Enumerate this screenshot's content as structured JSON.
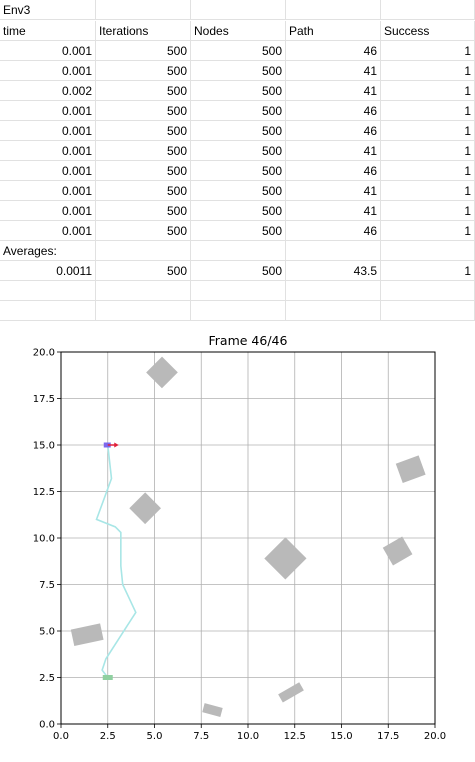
{
  "sheet": {
    "title": "Env3",
    "headers": [
      "time",
      "Iterations",
      "Nodes",
      "Path",
      "Success"
    ],
    "rows": [
      [
        "0.001",
        "500",
        "500",
        "46",
        "1"
      ],
      [
        "0.001",
        "500",
        "500",
        "41",
        "1"
      ],
      [
        "0.002",
        "500",
        "500",
        "41",
        "1"
      ],
      [
        "0.001",
        "500",
        "500",
        "46",
        "1"
      ],
      [
        "0.001",
        "500",
        "500",
        "46",
        "1"
      ],
      [
        "0.001",
        "500",
        "500",
        "41",
        "1"
      ],
      [
        "0.001",
        "500",
        "500",
        "46",
        "1"
      ],
      [
        "0.001",
        "500",
        "500",
        "41",
        "1"
      ],
      [
        "0.001",
        "500",
        "500",
        "41",
        "1"
      ],
      [
        "0.001",
        "500",
        "500",
        "46",
        "1"
      ]
    ],
    "averages_label": "Averages:",
    "averages": [
      "0.0011",
      "500",
      "500",
      "43.5",
      "1"
    ]
  },
  "chart_data": {
    "type": "scatter",
    "title": "Frame 46/46",
    "xlabel": "",
    "ylabel": "",
    "xlim": [
      0,
      20
    ],
    "ylim": [
      0,
      20
    ],
    "xticks": [
      "0.0",
      "2.5",
      "5.0",
      "7.5",
      "10.0",
      "12.5",
      "15.0",
      "17.5",
      "20.0"
    ],
    "yticks": [
      "0.0",
      "2.5",
      "5.0",
      "7.5",
      "10.0",
      "12.5",
      "15.0",
      "17.5",
      "20.0"
    ],
    "grid": true,
    "colors": {
      "obstacle": "#b9b9b9",
      "path": "#a8e6e6",
      "start": "#8fd0a0",
      "robot": "#7b68ee",
      "heading": "#e0203a"
    },
    "path": {
      "name": "",
      "x": [
        2.5,
        2.2,
        2.4,
        4.0,
        3.3,
        3.2,
        3.2,
        2.9,
        1.9,
        2.7,
        2.5
      ],
      "y": [
        2.5,
        2.9,
        3.5,
        6.0,
        7.5,
        8.5,
        10.3,
        10.6,
        11.0,
        13.2,
        15.0
      ]
    },
    "start": {
      "x": 2.5,
      "y": 2.5
    },
    "robot": {
      "x": 2.5,
      "y": 15.0,
      "heading_deg": 0
    },
    "obstacles": [
      {
        "cx": 5.4,
        "cy": 18.9,
        "w": 1.2,
        "h": 1.2,
        "angle": 45
      },
      {
        "cx": 4.5,
        "cy": 11.6,
        "w": 1.2,
        "h": 1.2,
        "angle": 45
      },
      {
        "cx": 12.0,
        "cy": 8.9,
        "w": 1.6,
        "h": 1.6,
        "angle": 45
      },
      {
        "cx": 18.7,
        "cy": 13.7,
        "w": 1.3,
        "h": 1.1,
        "angle": 20
      },
      {
        "cx": 18.0,
        "cy": 9.3,
        "w": 1.2,
        "h": 1.1,
        "angle": 30
      },
      {
        "cx": 1.4,
        "cy": 4.8,
        "w": 1.6,
        "h": 0.9,
        "angle": 12
      },
      {
        "cx": 8.1,
        "cy": 0.75,
        "w": 1.0,
        "h": 0.5,
        "angle": -15
      },
      {
        "cx": 12.3,
        "cy": 1.7,
        "w": 1.3,
        "h": 0.5,
        "angle": 30
      }
    ]
  }
}
